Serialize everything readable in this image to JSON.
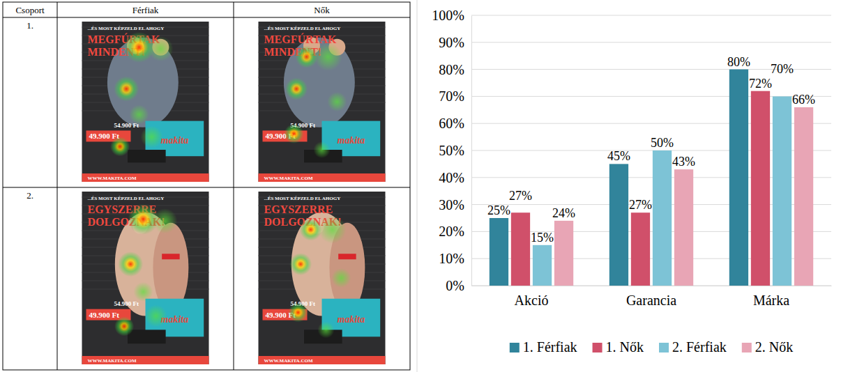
{
  "chart_data": {
    "type": "bar",
    "categories": [
      "Akció",
      "Garancia",
      "Márka"
    ],
    "series": [
      {
        "name": "1. Férfiak",
        "color": "#31849b",
        "values": [
          25,
          45,
          80
        ],
        "value_labels": [
          "25%",
          "45%",
          "80%"
        ]
      },
      {
        "name": "1. Nők",
        "color": "#d0506a",
        "values": [
          27,
          27,
          72
        ],
        "value_labels": [
          "27%",
          "27%",
          "72%"
        ]
      },
      {
        "name": "2. Férfiak",
        "color": "#7dc3d6",
        "values": [
          15,
          50,
          70
        ],
        "value_labels": [
          "15%",
          "50%",
          "70%"
        ]
      },
      {
        "name": "2. Nők",
        "color": "#e8a5b5",
        "values": [
          24,
          43,
          66
        ],
        "value_labels": [
          "24%",
          "43%",
          "66%"
        ]
      }
    ],
    "ylim": [
      0,
      100
    ],
    "yticks": [
      {
        "value": 0,
        "label": "0%"
      },
      {
        "value": 10,
        "label": "10%"
      },
      {
        "value": 20,
        "label": "20%"
      },
      {
        "value": 30,
        "label": "30%"
      },
      {
        "value": 40,
        "label": "40%"
      },
      {
        "value": 50,
        "label": "50%"
      },
      {
        "value": 60,
        "label": "60%"
      },
      {
        "value": 70,
        "label": "70%"
      },
      {
        "value": 80,
        "label": "80%"
      },
      {
        "value": 90,
        "label": "90%"
      },
      {
        "value": 100,
        "label": "100%"
      }
    ],
    "grid": true,
    "data_labels": true,
    "legend": "bottom"
  },
  "table": {
    "header": [
      "Csoport",
      "Férfiak",
      "Nők"
    ],
    "rows": [
      {
        "group": "1.",
        "headline": [
          "MEGFÚRTAK",
          "MINDENT!"
        ]
      },
      {
        "group": "2.",
        "headline": [
          "EGYSZERRE",
          "DOLGOZNAK!"
        ]
      }
    ],
    "poster": {
      "tagline": "...ÉS MOST KÉPZELD EL AHOGY",
      "old_price": "54.900 Ft",
      "price": "49.900 Ft",
      "brand": "makita",
      "url": "WWW.MAKITA.COM"
    }
  }
}
